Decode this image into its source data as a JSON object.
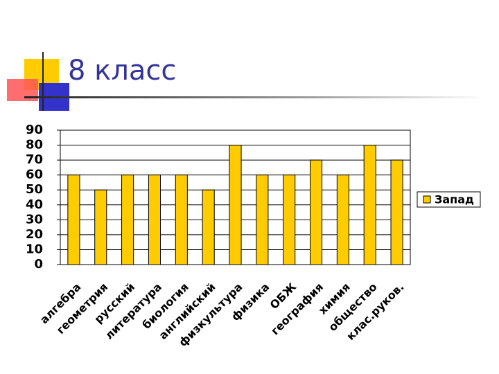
{
  "chart_data": {
    "type": "bar",
    "title": "8 класс",
    "categories": [
      "алгебра",
      "геометрия",
      "русский",
      "литература",
      "биология",
      "английский",
      "физкультура",
      "физика",
      "ОБЖ",
      "география",
      "химия",
      "общество",
      "клас.руков."
    ],
    "series": [
      {
        "name": "Запад",
        "color": "#ffcc00",
        "values": [
          60,
          50,
          60,
          60,
          60,
          50,
          80,
          60,
          60,
          70,
          60,
          80,
          70
        ]
      }
    ],
    "ylim": [
      0,
      90
    ],
    "yticks": [
      0,
      10,
      20,
      30,
      40,
      50,
      60,
      70,
      80,
      90
    ],
    "grid": true,
    "legend": "right"
  }
}
